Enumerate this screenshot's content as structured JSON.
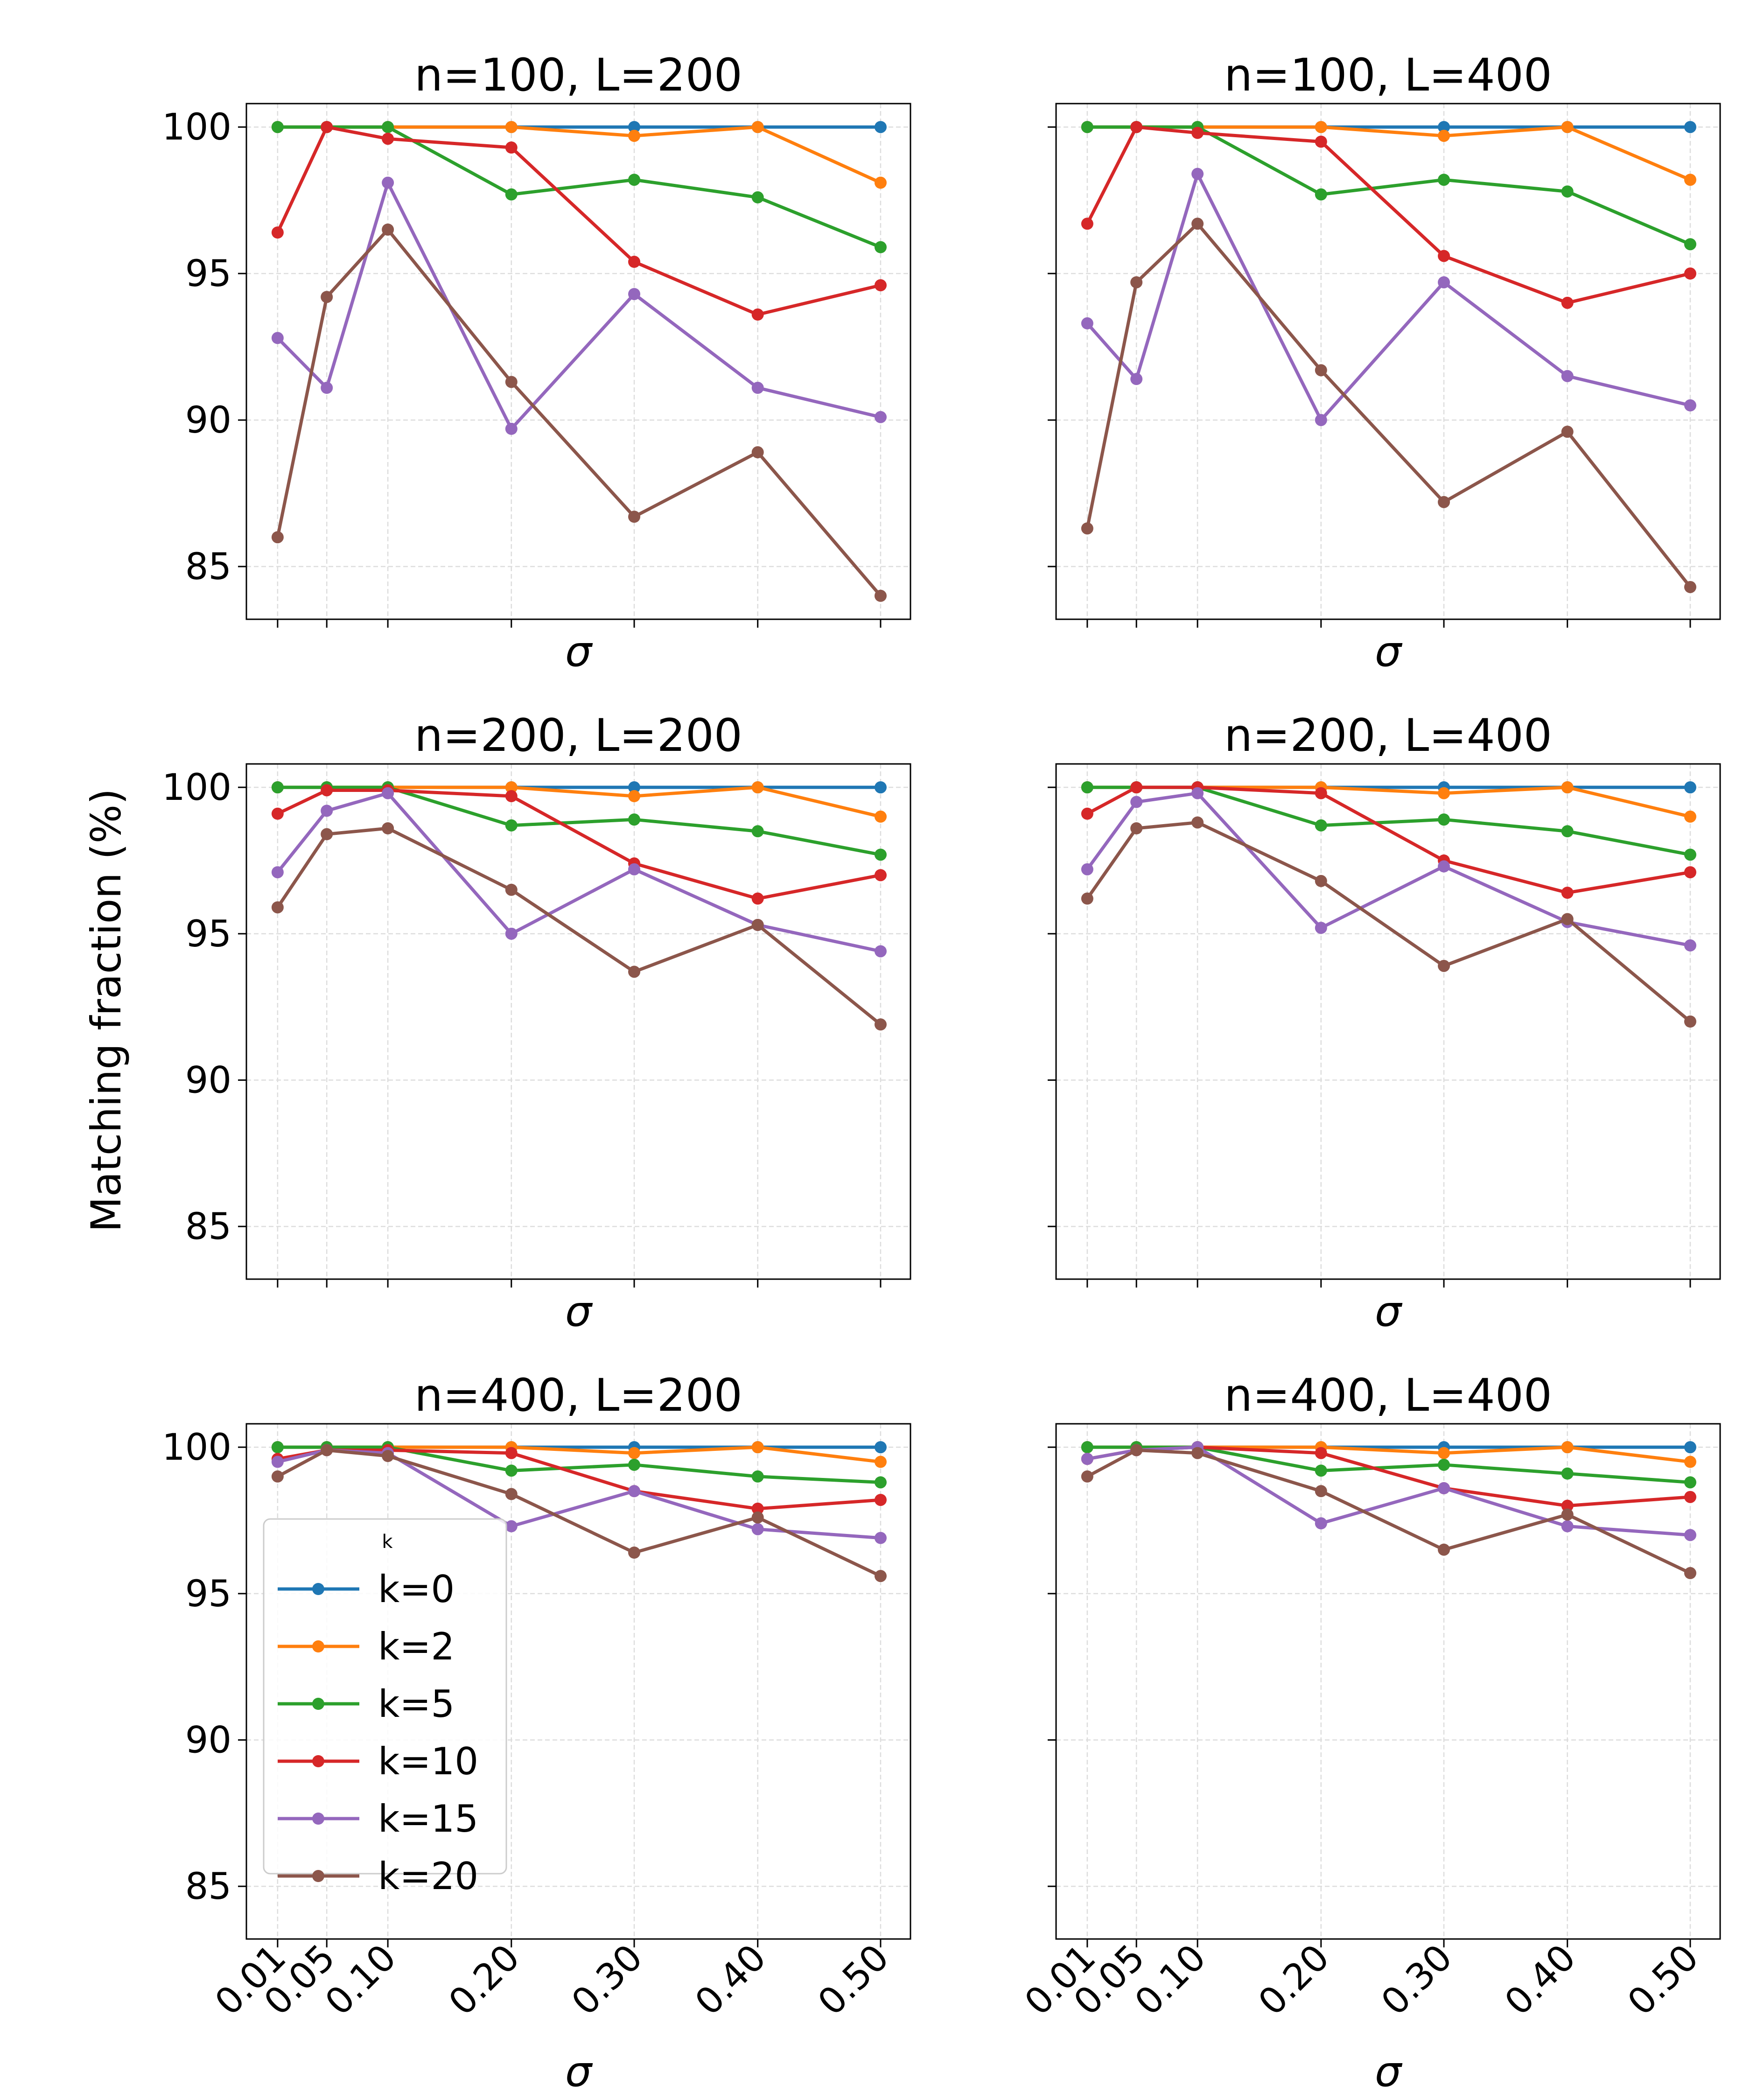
{
  "figure": {
    "ylabel": "Matching fraction (%)",
    "legend_title": "k"
  },
  "chart_data": {
    "type": "line",
    "x": [
      0.01,
      0.05,
      0.1,
      0.2,
      0.3,
      0.4,
      0.5
    ],
    "x_tick_labels": [
      "0.01",
      "0.05",
      "0.10",
      "0.20",
      "0.30",
      "0.40",
      "0.50"
    ],
    "xlabel": "σ",
    "ylabel": "Matching fraction (%)",
    "ylim": [
      83.2,
      100.8
    ],
    "y_ticks": [
      85,
      90,
      95,
      100
    ],
    "grid": true,
    "legend": {
      "title": "k",
      "placement": "left-center",
      "entries": [
        "k=0",
        "k=2",
        "k=5",
        "k=10",
        "k=15",
        "k=20"
      ]
    },
    "series_style": [
      {
        "name": "k=0",
        "color": "#1f77b4"
      },
      {
        "name": "k=2",
        "color": "#ff7f0e"
      },
      {
        "name": "k=5",
        "color": "#2ca02c"
      },
      {
        "name": "k=10",
        "color": "#d62728"
      },
      {
        "name": "k=15",
        "color": "#9467bd"
      },
      {
        "name": "k=20",
        "color": "#8c564b"
      }
    ],
    "panels": [
      {
        "title": "n=100, L=200",
        "series": [
          {
            "name": "k=0",
            "values": [
              100.0,
              100.0,
              100.0,
              100.0,
              100.0,
              100.0,
              100.0
            ]
          },
          {
            "name": "k=2",
            "values": [
              100.0,
              100.0,
              100.0,
              100.0,
              99.7,
              100.0,
              98.1
            ]
          },
          {
            "name": "k=5",
            "values": [
              100.0,
              100.0,
              100.0,
              97.7,
              98.2,
              97.6,
              95.9
            ]
          },
          {
            "name": "k=10",
            "values": [
              96.4,
              100.0,
              99.6,
              99.3,
              95.4,
              93.6,
              94.6
            ]
          },
          {
            "name": "k=15",
            "values": [
              92.8,
              91.1,
              98.1,
              89.7,
              94.3,
              91.1,
              90.1
            ]
          },
          {
            "name": "k=20",
            "values": [
              86.0,
              94.2,
              96.5,
              91.3,
              86.7,
              88.9,
              84.0
            ]
          }
        ]
      },
      {
        "title": "n=100, L=400",
        "series": [
          {
            "name": "k=0",
            "values": [
              100.0,
              100.0,
              100.0,
              100.0,
              100.0,
              100.0,
              100.0
            ]
          },
          {
            "name": "k=2",
            "values": [
              100.0,
              100.0,
              100.0,
              100.0,
              99.7,
              100.0,
              98.2
            ]
          },
          {
            "name": "k=5",
            "values": [
              100.0,
              100.0,
              100.0,
              97.7,
              98.2,
              97.8,
              96.0
            ]
          },
          {
            "name": "k=10",
            "values": [
              96.7,
              100.0,
              99.8,
              99.5,
              95.6,
              94.0,
              95.0
            ]
          },
          {
            "name": "k=15",
            "values": [
              93.3,
              91.4,
              98.4,
              90.0,
              94.7,
              91.5,
              90.5
            ]
          },
          {
            "name": "k=20",
            "values": [
              86.3,
              94.7,
              96.7,
              91.7,
              87.2,
              89.6,
              84.3
            ]
          }
        ]
      },
      {
        "title": "n=200, L=200",
        "series": [
          {
            "name": "k=0",
            "values": [
              100.0,
              100.0,
              100.0,
              100.0,
              100.0,
              100.0,
              100.0
            ]
          },
          {
            "name": "k=2",
            "values": [
              100.0,
              100.0,
              100.0,
              100.0,
              99.7,
              100.0,
              99.0
            ]
          },
          {
            "name": "k=5",
            "values": [
              100.0,
              100.0,
              100.0,
              98.7,
              98.9,
              98.5,
              97.7
            ]
          },
          {
            "name": "k=10",
            "values": [
              99.1,
              99.9,
              99.9,
              99.7,
              97.4,
              96.2,
              97.0
            ]
          },
          {
            "name": "k=15",
            "values": [
              97.1,
              99.2,
              99.8,
              95.0,
              97.2,
              95.3,
              94.4
            ]
          },
          {
            "name": "k=20",
            "values": [
              95.9,
              98.4,
              98.6,
              96.5,
              93.7,
              95.3,
              91.9
            ]
          }
        ]
      },
      {
        "title": "n=200, L=400",
        "series": [
          {
            "name": "k=0",
            "values": [
              100.0,
              100.0,
              100.0,
              100.0,
              100.0,
              100.0,
              100.0
            ]
          },
          {
            "name": "k=2",
            "values": [
              100.0,
              100.0,
              100.0,
              100.0,
              99.8,
              100.0,
              99.0
            ]
          },
          {
            "name": "k=5",
            "values": [
              100.0,
              100.0,
              100.0,
              98.7,
              98.9,
              98.5,
              97.7
            ]
          },
          {
            "name": "k=10",
            "values": [
              99.1,
              100.0,
              100.0,
              99.8,
              97.5,
              96.4,
              97.1
            ]
          },
          {
            "name": "k=15",
            "values": [
              97.2,
              99.5,
              99.8,
              95.2,
              97.3,
              95.4,
              94.6
            ]
          },
          {
            "name": "k=20",
            "values": [
              96.2,
              98.6,
              98.8,
              96.8,
              93.9,
              95.5,
              92.0
            ]
          }
        ]
      },
      {
        "title": "n=400, L=200",
        "series": [
          {
            "name": "k=0",
            "values": [
              100.0,
              100.0,
              100.0,
              100.0,
              100.0,
              100.0,
              100.0
            ]
          },
          {
            "name": "k=2",
            "values": [
              100.0,
              100.0,
              100.0,
              100.0,
              99.8,
              100.0,
              99.5
            ]
          },
          {
            "name": "k=5",
            "values": [
              100.0,
              100.0,
              100.0,
              99.2,
              99.4,
              99.0,
              98.8
            ]
          },
          {
            "name": "k=10",
            "values": [
              99.6,
              99.9,
              99.9,
              99.8,
              98.5,
              97.9,
              98.2
            ]
          },
          {
            "name": "k=15",
            "values": [
              99.5,
              99.9,
              99.8,
              97.3,
              98.5,
              97.2,
              96.9
            ]
          },
          {
            "name": "k=20",
            "values": [
              99.0,
              99.9,
              99.7,
              98.4,
              96.4,
              97.6,
              95.6
            ]
          }
        ]
      },
      {
        "title": "n=400, L=400",
        "series": [
          {
            "name": "k=0",
            "values": [
              100.0,
              100.0,
              100.0,
              100.0,
              100.0,
              100.0,
              100.0
            ]
          },
          {
            "name": "k=2",
            "values": [
              100.0,
              100.0,
              100.0,
              100.0,
              99.8,
              100.0,
              99.5
            ]
          },
          {
            "name": "k=5",
            "values": [
              100.0,
              100.0,
              100.0,
              99.2,
              99.4,
              99.1,
              98.8
            ]
          },
          {
            "name": "k=10",
            "values": [
              99.6,
              99.9,
              100.0,
              99.8,
              98.6,
              98.0,
              98.3
            ]
          },
          {
            "name": "k=15",
            "values": [
              99.6,
              99.9,
              100.0,
              97.4,
              98.6,
              97.3,
              97.0
            ]
          },
          {
            "name": "k=20",
            "values": [
              99.0,
              99.9,
              99.8,
              98.5,
              96.5,
              97.7,
              95.7
            ]
          }
        ]
      }
    ]
  }
}
